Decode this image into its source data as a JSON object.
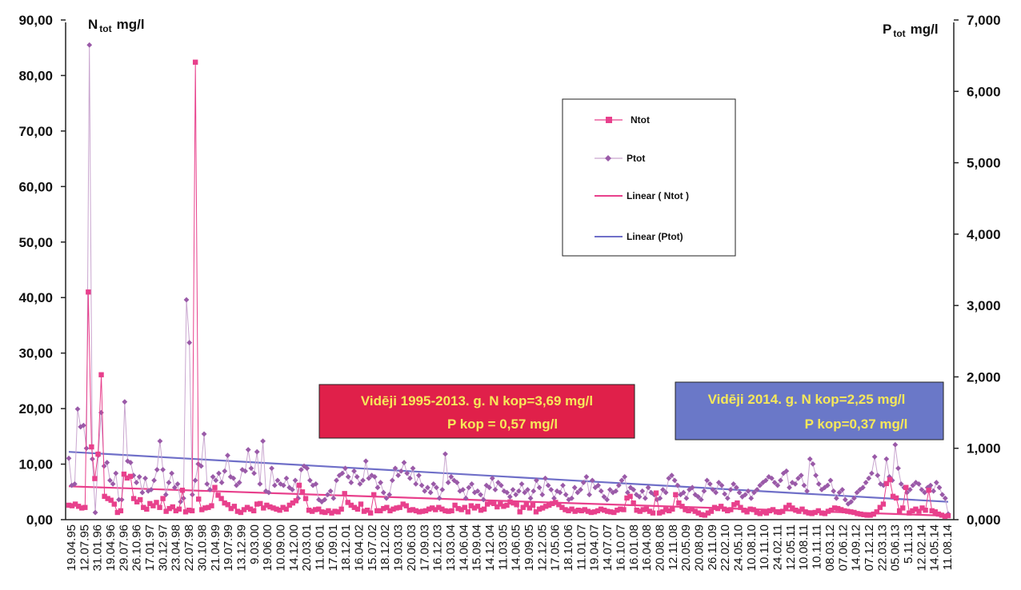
{
  "chart_data": {
    "type": "line",
    "left_axis": {
      "title_main": "N",
      "title_sub": "tot",
      "title_unit": "mg/l",
      "range": [
        0,
        90
      ],
      "ticks": [
        "0,00",
        "10,00",
        "20,00",
        "30,00",
        "40,00",
        "50,00",
        "60,00",
        "70,00",
        "80,00",
        "90,00"
      ]
    },
    "right_axis": {
      "title_main": "P",
      "title_sub": "tot",
      "title_unit": "mg/l",
      "range": [
        0,
        7
      ],
      "ticks": [
        "0,000",
        "1,000",
        "2,000",
        "3,000",
        "4,000",
        "5,000",
        "6,000",
        "7,000"
      ]
    },
    "x_labels": [
      "19.04.95",
      "12.07.95",
      "31.01.96",
      "19.04.96",
      "29.07.96",
      "26.10.96",
      "17.01.97",
      "30.12.97",
      "23.04.98",
      "22.07.98",
      "30.10.98",
      "21.04.99",
      "19.07.99",
      "13.12.99",
      "9.03.00",
      "19.06.00",
      "10.09.00",
      "14.12.00",
      "20.03.01",
      "11.06.01",
      "17.09.01",
      "18.12.01",
      "16.04.02",
      "15.07.02",
      "18.12.02",
      "19.03.03",
      "20.06.03",
      "17.09.03",
      "16.12.03",
      "13.03.04",
      "14.06.04",
      "15.09.04",
      "14.12.04",
      "11.03.05",
      "14.06.05",
      "19.09.05",
      "12.12.05",
      "17.05.06",
      "18.10.06",
      "11.01.07",
      "19.04.07",
      "14.07.07",
      "16.10.07",
      "16.01.08",
      "16.04.08",
      "20.08.08",
      "12.11.08",
      "20.05.09",
      "20.08.09",
      "26.11.09",
      "22.02.10",
      "24.05.10",
      "10.08.10",
      "10.11.10",
      "24.02.11",
      "12.05.11",
      "10.08.11",
      "10.11.11",
      "08.03.12",
      "07.06.12",
      "14.09.12",
      "07.12.12",
      "22.03.13",
      "05.06.13",
      "5.11.13",
      "12.02.14",
      "14.05.14",
      "11.08.14"
    ],
    "series": [
      {
        "name": "Ntot",
        "axis": "left",
        "color": "#e8408c",
        "marker": "square",
        "values": [
          2.6,
          2.5,
          2.8,
          2.4,
          2.1,
          2.2,
          41.0,
          13.1,
          7.4,
          11.8,
          26.1,
          4.2,
          3.8,
          3.5,
          2.8,
          1.3,
          1.6,
          8.2,
          7.5,
          7.8,
          3.8,
          3.2,
          3.6,
          2.2,
          1.9,
          2.9,
          2.5,
          3.1,
          2.2,
          3.8,
          1.5,
          2.0,
          2.3,
          1.6,
          1.9,
          5.3,
          1.4,
          1.7,
          1.6,
          82.4,
          3.7,
          1.8,
          2.1,
          2.2,
          2.5,
          5.8,
          4.4,
          3.8,
          3.0,
          2.7,
          2.0,
          2.4,
          1.5,
          1.3,
          1.8,
          2.2,
          1.9,
          1.6,
          2.8,
          2.9,
          2.1,
          2.6,
          2.3,
          2.1,
          1.9,
          1.7,
          2.2,
          1.9,
          2.6,
          3.0,
          3.4,
          6.2,
          5.0,
          3.8,
          1.7,
          1.5,
          1.8,
          1.9,
          1.4,
          1.3,
          1.6,
          1.2,
          1.5,
          1.4,
          1.9,
          4.7,
          3.1,
          2.6,
          2.2,
          1.9,
          2.8,
          1.5,
          1.7,
          1.2,
          4.5,
          1.6,
          1.6,
          2.0,
          2.2,
          1.6,
          1.9,
          2.1,
          2.2,
          2.8,
          2.5,
          1.7,
          1.8,
          1.6,
          1.4,
          1.5,
          1.6,
          1.9,
          2.1,
          1.8,
          2.2,
          1.9,
          1.6,
          1.5,
          1.6,
          2.6,
          2.0,
          1.8,
          2.2,
          1.4,
          2.5,
          2.1,
          2.4,
          1.7,
          1.9,
          2.8,
          3.1,
          2.9,
          2.3,
          2.8,
          2.4,
          2.6,
          3.2,
          3.0,
          2.7,
          1.4,
          2.2,
          2.7,
          2.1,
          2.6,
          1.4,
          1.9,
          2.1,
          2.4,
          2.6,
          2.9,
          3.1,
          2.7,
          2.2,
          1.8,
          1.6,
          1.9,
          1.5,
          1.7,
          1.6,
          1.8,
          1.5,
          1.3,
          1.4,
          1.6,
          1.9,
          1.7,
          1.5,
          1.4,
          1.3,
          1.7,
          1.9,
          1.8,
          3.9,
          4.2,
          3.0,
          1.7,
          1.5,
          1.8,
          1.9,
          1.5,
          1.2,
          4.8,
          1.2,
          1.4,
          1.8,
          1.6,
          1.9,
          4.5,
          3.0,
          2.4,
          1.8,
          1.6,
          1.9,
          1.5,
          1.2,
          0.9,
          0.8,
          1.2,
          1.5,
          2.2,
          2.0,
          2.4,
          1.9,
          1.6,
          1.8,
          2.7,
          3.0,
          2.2,
          1.7,
          1.4,
          1.9,
          1.8,
          1.3,
          1.1,
          1.4,
          1.2,
          1.6,
          1.8,
          1.4,
          1.3,
          1.5,
          2.2,
          2.6,
          2.1,
          1.7,
          1.5,
          1.9,
          1.4,
          1.2,
          1.1,
          1.3,
          1.6,
          1.2,
          1.1,
          1.5,
          1.7,
          2.1,
          2.0,
          1.8,
          1.6,
          1.5,
          1.4,
          1.3,
          1.1,
          1.0,
          0.9,
          0.8,
          0.8,
          1.0,
          1.4,
          2.2,
          2.8,
          6.5,
          7.2,
          4.2,
          3.9,
          1.6,
          2.1,
          5.8,
          1.2,
          1.6,
          1.9,
          1.5,
          2.1,
          1.7,
          5.3,
          1.6,
          1.4,
          1.0,
          0.8,
          0.6,
          0.7
        ]
      },
      {
        "name": "Ptot",
        "axis": "right",
        "color": "#9a5aa8",
        "marker": "diamond",
        "values": [
          0.86,
          0.48,
          0.5,
          1.55,
          1.3,
          1.32,
          1.0,
          6.65,
          0.85,
          0.1,
          0.9,
          1.5,
          0.75,
          0.8,
          0.55,
          0.5,
          0.65,
          0.28,
          0.28,
          1.65,
          0.82,
          0.8,
          0.62,
          0.52,
          0.6,
          0.38,
          0.58,
          0.4,
          0.42,
          0.55,
          0.7,
          1.1,
          0.7,
          0.35,
          0.52,
          0.65,
          0.45,
          0.5,
          0.25,
          0.3,
          3.08,
          2.48,
          0.35,
          0.55,
          0.78,
          0.75,
          1.2,
          0.5,
          0.42,
          0.6,
          0.55,
          0.65,
          0.52,
          0.68,
          0.9,
          0.6,
          0.58,
          0.48,
          0.52,
          0.7,
          0.68,
          0.98,
          0.72,
          0.65,
          0.95,
          0.5,
          1.1,
          0.4,
          0.38,
          0.72,
          0.48,
          0.55,
          0.5,
          0.48,
          0.58,
          0.45,
          0.42,
          0.55,
          0.3,
          0.7,
          0.75,
          0.72,
          0.55,
          0.48,
          0.5,
          0.28,
          0.25,
          0.28,
          0.35,
          0.4,
          0.3,
          0.55,
          0.62,
          0.65,
          0.72,
          0.6,
          0.52,
          0.68,
          0.6,
          0.5,
          0.55,
          0.82,
          0.58,
          0.62,
          0.6,
          0.45,
          0.52,
          0.38,
          0.3,
          0.35,
          0.55,
          0.72,
          0.62,
          0.68,
          0.8,
          0.65,
          0.58,
          0.72,
          0.5,
          0.62,
          0.48,
          0.4,
          0.45,
          0.38,
          0.5,
          0.45,
          0.3,
          0.42,
          0.92,
          0.52,
          0.6,
          0.55,
          0.52,
          0.4,
          0.42,
          0.3,
          0.45,
          0.5,
          0.38,
          0.4,
          0.35,
          0.28,
          0.48,
          0.45,
          0.58,
          0.42,
          0.52,
          0.48,
          0.4,
          0.38,
          0.32,
          0.42,
          0.35,
          0.4,
          0.5,
          0.38,
          0.42,
          0.3,
          0.4,
          0.55,
          0.45,
          0.35,
          0.58,
          0.48,
          0.42,
          0.3,
          0.4,
          0.38,
          0.48,
          0.35,
          0.28,
          0.3,
          0.45,
          0.38,
          0.42,
          0.52,
          0.6,
          0.35,
          0.55,
          0.45,
          0.48,
          0.4,
          0.32,
          0.28,
          0.42,
          0.38,
          0.4,
          0.48,
          0.55,
          0.6,
          0.38,
          0.45,
          0.42,
          0.35,
          0.32,
          0.4,
          0.3,
          0.45,
          0.38,
          0.35,
          0.28,
          0.3,
          0.42,
          0.38,
          0.58,
          0.62,
          0.55,
          0.48,
          0.35,
          0.38,
          0.3,
          0.42,
          0.45,
          0.35,
          0.32,
          0.28,
          0.4,
          0.55,
          0.5,
          0.42,
          0.38,
          0.52,
          0.48,
          0.36,
          0.3,
          0.42,
          0.5,
          0.45,
          0.38,
          0.32,
          0.35,
          0.4,
          0.3,
          0.38,
          0.42,
          0.48,
          0.52,
          0.55,
          0.6,
          0.58,
          0.52,
          0.48,
          0.55,
          0.65,
          0.68,
          0.45,
          0.52,
          0.5,
          0.58,
          0.62,
          0.48,
          0.4,
          0.85,
          0.78,
          0.62,
          0.5,
          0.42,
          0.45,
          0.48,
          0.55,
          0.4,
          0.3,
          0.38,
          0.42,
          0.28,
          0.22,
          0.25,
          0.3,
          0.38,
          0.42,
          0.45,
          0.52,
          0.58,
          0.65,
          0.88,
          0.62,
          0.5,
          0.48,
          0.85,
          0.6,
          0.55,
          1.05,
          0.72,
          0.5,
          0.45,
          0.38,
          0.42,
          0.48,
          0.52,
          0.5,
          0.42,
          0.38,
          0.45,
          0.48,
          0.4,
          0.52,
          0.45,
          0.35,
          0.3,
          0.08
        ]
      },
      {
        "name": "Linear ( Ntot )",
        "axis": "left",
        "color": "#e8408c",
        "trend": [
          6.0,
          0.7
        ]
      },
      {
        "name": "Linear (Ptot)",
        "axis": "right",
        "color": "#6f6fc8",
        "trend": [
          0.95,
          0.25
        ]
      }
    ],
    "legend": {
      "position": "top-right",
      "entries": [
        "Ntot",
        "Ptot",
        "Linear ( Ntot )",
        "Linear (Ptot)"
      ]
    },
    "annotations": [
      {
        "lines": [
          "Vidēji 1995-2013. g. N kop=3,69 mg/l",
          "P kop = 0,57 mg/l"
        ],
        "bg": "#e0204a"
      },
      {
        "lines": [
          "Vidēji 2014. g. N kop=2,25 mg/l",
          "P kop=0,37 mg/l"
        ],
        "bg": "#6a78c8"
      }
    ]
  }
}
